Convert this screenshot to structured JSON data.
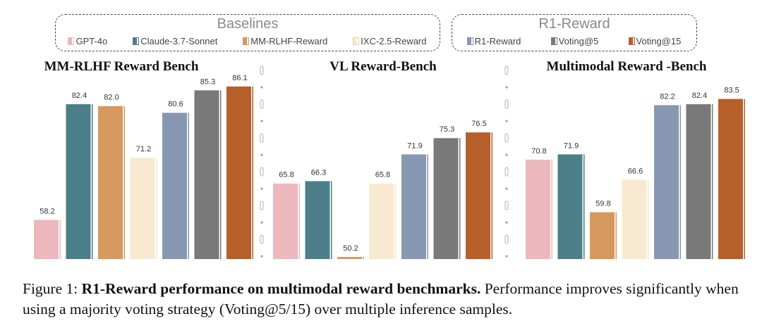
{
  "legend": {
    "baselines": {
      "title": "Baselines",
      "items": [
        {
          "label": "GPT-4o",
          "color": "#ecb8bd"
        },
        {
          "label": "Claude-3.7-Sonnet",
          "color": "#4c7f8a"
        },
        {
          "label": "MM-RLHF-Reward",
          "color": "#d7985d"
        },
        {
          "label": "IXC-2.5-Reward",
          "color": "#f7ead0"
        }
      ]
    },
    "r1": {
      "title": "R1-Reward",
      "items": [
        {
          "label": "R1-Reward",
          "color": "#8797b1"
        },
        {
          "label": "Voting@5",
          "color": "#797979"
        },
        {
          "label": "Voting@15",
          "color": "#b65f2a"
        }
      ]
    }
  },
  "chart_data": [
    {
      "type": "bar",
      "title": "MM-RLHF Reward Bench",
      "series": [
        "GPT-4o",
        "Claude-3.7-Sonnet",
        "MM-RLHF-Reward",
        "IXC-2.5-Reward",
        "R1-Reward",
        "Voting@5",
        "Voting@15"
      ],
      "values": [
        58.2,
        82.4,
        82.0,
        71.2,
        80.6,
        85.3,
        86.1
      ],
      "labels": [
        "58.2",
        "82.4",
        "82.0",
        "71.2",
        "80.6",
        "85.3",
        "86.1"
      ],
      "ylim": [
        50,
        88
      ]
    },
    {
      "type": "bar",
      "title": "VL Reward-Bench",
      "series": [
        "GPT-4o",
        "Claude-3.7-Sonnet",
        "MM-RLHF-Reward",
        "IXC-2.5-Reward",
        "R1-Reward",
        "Voting@5",
        "Voting@15"
      ],
      "values": [
        65.8,
        66.3,
        50.2,
        65.8,
        71.9,
        75.3,
        76.5
      ],
      "labels": [
        "65.8",
        "66.3",
        "50.2",
        "65.8",
        "71.9",
        "75.3",
        "76.5"
      ],
      "ylim": [
        50,
        88
      ]
    },
    {
      "type": "bar",
      "title": "Multimodal Reward -Bench",
      "series": [
        "GPT-4o",
        "Claude-3.7-Sonnet",
        "MM-RLHF-Reward",
        "IXC-2.5-Reward",
        "R1-Reward",
        "Voting@5",
        "Voting@15"
      ],
      "values": [
        70.8,
        71.9,
        59.8,
        66.6,
        82.2,
        82.4,
        83.5
      ],
      "labels": [
        "70.8",
        "71.9",
        "59.8",
        "66.6",
        "82.2",
        "82.4",
        "83.5"
      ],
      "ylim": [
        50,
        88
      ]
    }
  ],
  "caption": {
    "prefix": "Figure 1: ",
    "bold": "R1-Reward performance on multimodal reward benchmarks.",
    "rest": " Performance improves significantly when using a majority voting strategy (Voting@5/15) over multiple inference samples."
  }
}
